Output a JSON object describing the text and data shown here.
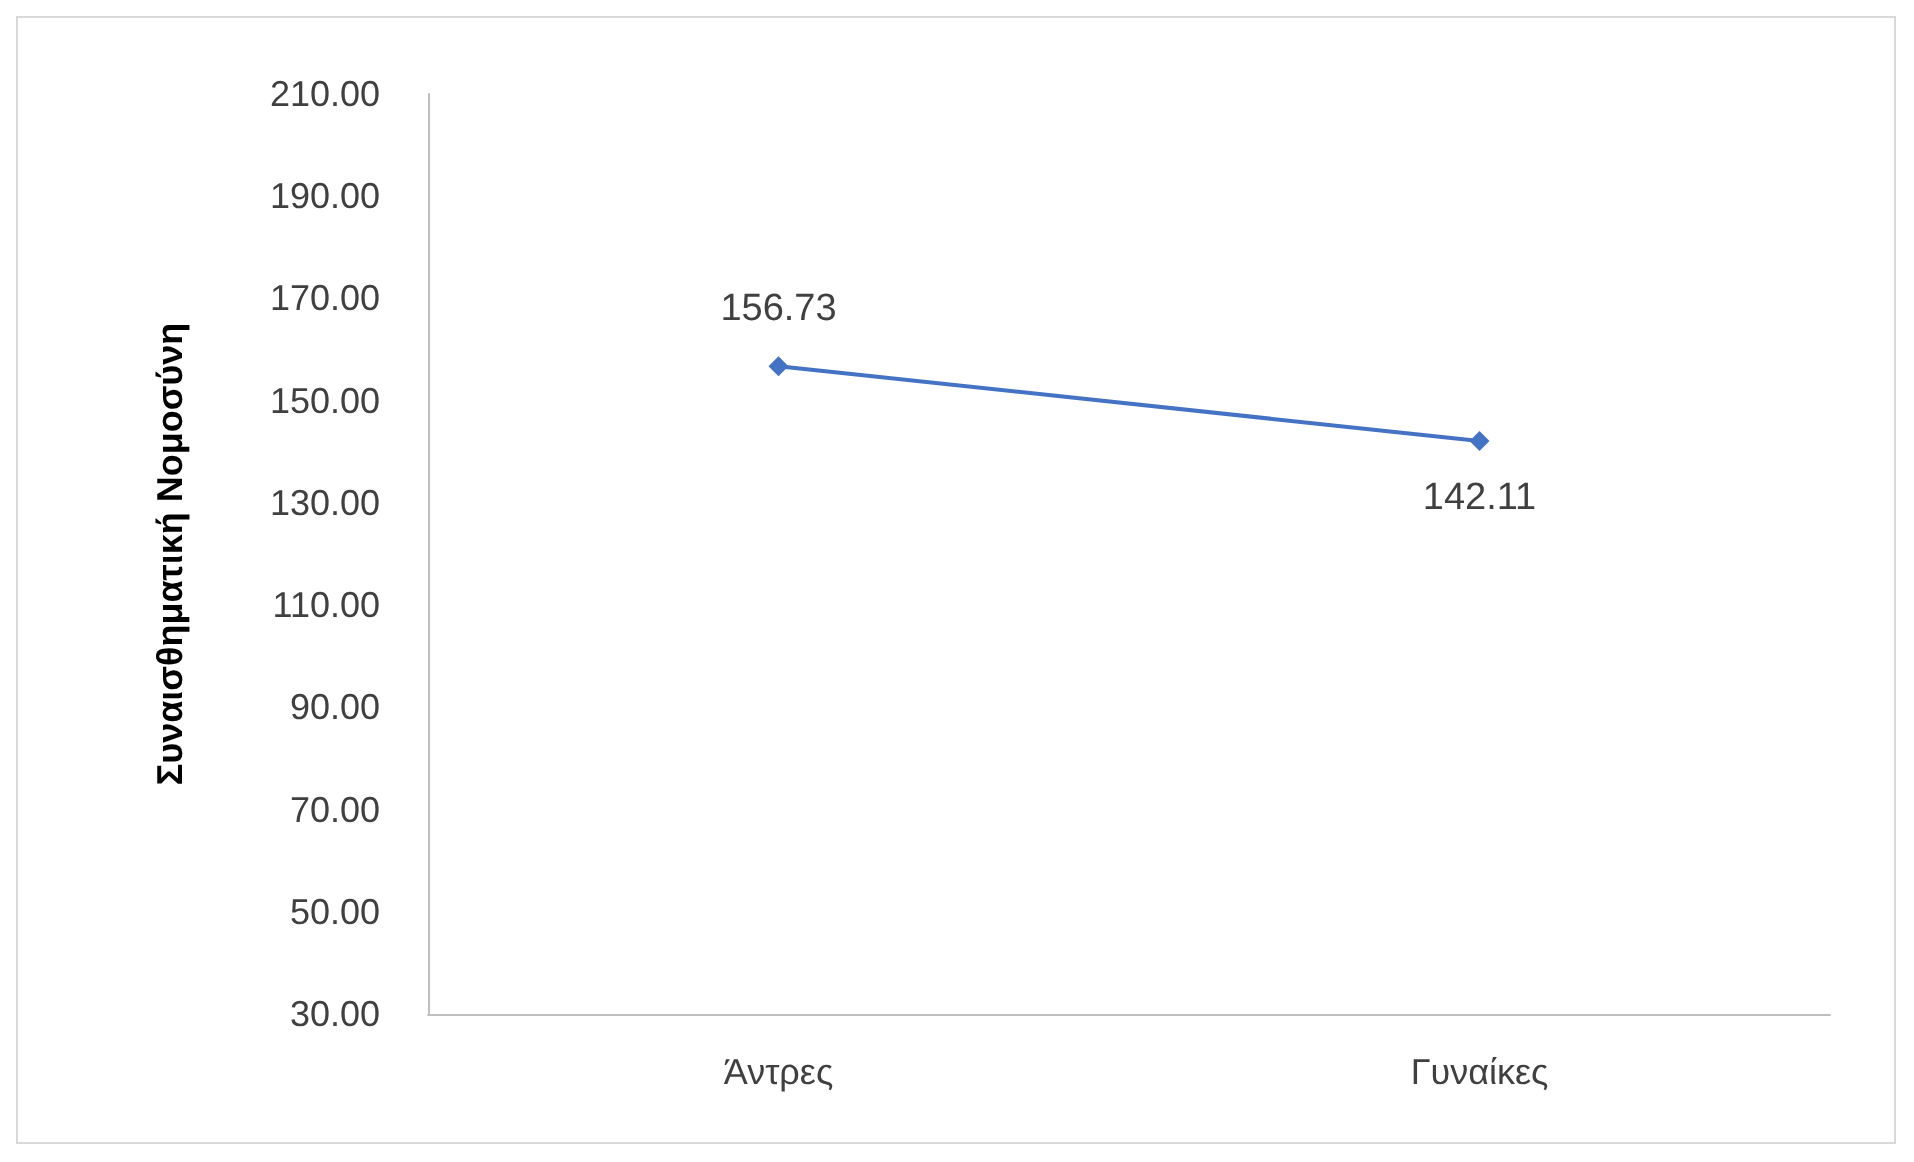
{
  "chart_data": {
    "type": "line",
    "ylabel": "Συναισθηματική Νομοσύνη",
    "categories": [
      "Άντρες",
      "Γυναίκες"
    ],
    "series": [
      {
        "color": "#4472c4",
        "values": [
          156.73,
          142.11
        ]
      }
    ],
    "ylim": [
      30,
      210
    ],
    "yticks": [
      {
        "value": 30,
        "label": "30.00"
      },
      {
        "value": 50,
        "label": "50.00"
      },
      {
        "value": 70,
        "label": "70.00"
      },
      {
        "value": 90,
        "label": "90.00"
      },
      {
        "value": 110,
        "label": "110.00"
      },
      {
        "value": 130,
        "label": "130.00"
      },
      {
        "value": 150,
        "label": "150.00"
      },
      {
        "value": 170,
        "label": "170.00"
      },
      {
        "value": 190,
        "label": "190.00"
      },
      {
        "value": 210,
        "label": "210.00"
      }
    ],
    "grid": false,
    "marker": "diamond",
    "line_style": "solid",
    "data_labels": true
  }
}
